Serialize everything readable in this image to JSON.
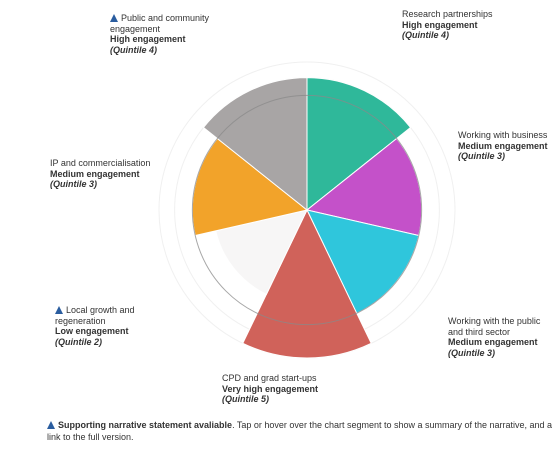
{
  "chart_data": {
    "type": "polar-area",
    "segments": [
      {
        "name": "Research partnerships",
        "level": "High engagement",
        "quintile": "(Quintile 4)",
        "value": 4,
        "color": "#2fb89a",
        "narrative": false
      },
      {
        "name": "Working with business",
        "level": "Medium engagement",
        "quintile": "(Quintile 3)",
        "value": 3,
        "color": "#c451c9",
        "narrative": false
      },
      {
        "name": "Working with the public and third sector",
        "level": "Medium engagement",
        "quintile": "(Quintile 3)",
        "value": 3,
        "color": "#2fc6dc",
        "narrative": false
      },
      {
        "name": "CPD and grad start-ups",
        "level": "Very high engagement",
        "quintile": "(Quintile 5)",
        "value": 5,
        "color": "#d0625a",
        "narrative": false
      },
      {
        "name": "Local growth and regeneration",
        "level": "Low engagement",
        "quintile": "(Quintile 2)",
        "value": 2,
        "color": "#f7f6f6",
        "narrative": true
      },
      {
        "name": "IP and commercialisation",
        "level": "Medium engagement",
        "quintile": "(Quintile 3)",
        "value": 3,
        "color": "#f2a32a",
        "narrative": false
      },
      {
        "name": "Public and community engagement",
        "level": "High engagement",
        "quintile": "(Quintile 4)",
        "value": 4,
        "color": "#a8a5a5",
        "narrative": true
      }
    ],
    "scale_max": 5,
    "reference_ring": 3
  },
  "footnote": {
    "bold": "Supporting narrative statement avaliable",
    "text": ". Tap or hover over the chart segment to show a summary of the narrative, and a link to the full version."
  },
  "colors": {
    "narrative_icon": "#2a5d9f",
    "reference_ring": "#8a8a8a"
  }
}
